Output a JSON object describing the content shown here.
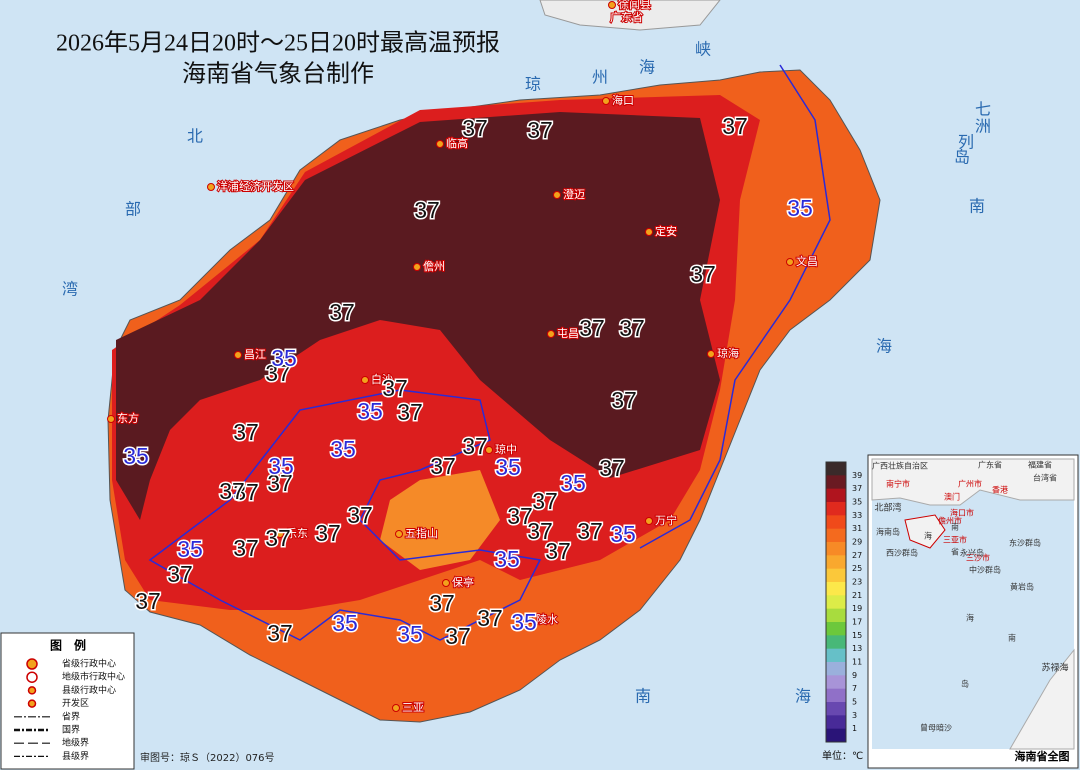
{
  "header": {
    "title": "2026年5月24日20时～25日20时最高温预报",
    "subtitle": "海南省气象台制作"
  },
  "sea_labels": [
    "琼",
    "州",
    "海",
    "峡",
    "北",
    "部",
    "湾",
    "南",
    "海",
    "南",
    "海",
    "七",
    "洲",
    "列",
    "岛"
  ],
  "cities": [
    "徐闻县",
    "广东省",
    "海口",
    "临高",
    "澄迈",
    "定安",
    "文昌",
    "儋州",
    "屯昌",
    "琼海",
    "昌江",
    "白沙",
    "东方",
    "琼中",
    "万宁",
    "乐东",
    "五指山",
    "保亭",
    "陵水",
    "三亚",
    "洋浦经济开发区"
  ],
  "contour_labels": [
    37,
    37,
    37,
    37,
    37,
    37,
    37,
    37,
    37,
    37,
    37,
    37,
    37,
    37,
    37,
    37,
    37,
    37,
    37,
    37,
    37,
    37,
    37,
    37,
    37,
    37,
    37,
    37,
    37,
    37,
    37,
    37,
    37,
    37,
    35,
    35,
    35,
    35,
    35,
    35,
    35,
    35,
    35,
    35,
    35,
    35,
    35,
    35
  ],
  "label_colors": {
    "35": "#2a2ad8",
    "37": "#111111"
  },
  "colorbar": {
    "ticks": [
      39,
      37,
      35,
      33,
      31,
      29,
      27,
      25,
      23,
      21,
      19,
      17,
      15,
      13,
      11,
      9,
      7,
      5,
      3,
      1
    ],
    "colors": [
      "#3a2a2a",
      "#6a1a22",
      "#b0141e",
      "#e02a1e",
      "#f04a1a",
      "#f46a1e",
      "#f78a26",
      "#f9a82e",
      "#fbc83a",
      "#fce84a",
      "#dcec48",
      "#a8dc3e",
      "#6cc83c",
      "#48b878",
      "#66c0c8",
      "#9ab0dc",
      "#a894d8",
      "#9070c8",
      "#6848b0",
      "#482a98",
      "#2a1478"
    ],
    "unit": "单位：℃"
  },
  "legend": {
    "title": "图　例",
    "items": [
      "省级行政中心",
      "地级市行政中心",
      "县级行政中心",
      "开发区",
      "省界",
      "国界",
      "地级界",
      "县级界"
    ]
  },
  "approval": "审图号：琼Ｓ（2022）076号",
  "inset": {
    "title": "海南省全图",
    "labels": [
      "广西壮族自治区",
      "广东省",
      "福建省",
      "台湾省",
      "南宁市",
      "广州市",
      "香港",
      "澳门",
      "海口市",
      "儋州市",
      "三亚市",
      "三沙市",
      "北部湾",
      "海南岛",
      "海",
      "南",
      "省",
      "东沙群岛",
      "西沙群岛",
      "永兴岛",
      "中沙群岛",
      "黄岩岛",
      "海",
      "南",
      "岛",
      "苏禄海",
      "曾母暗沙"
    ]
  }
}
